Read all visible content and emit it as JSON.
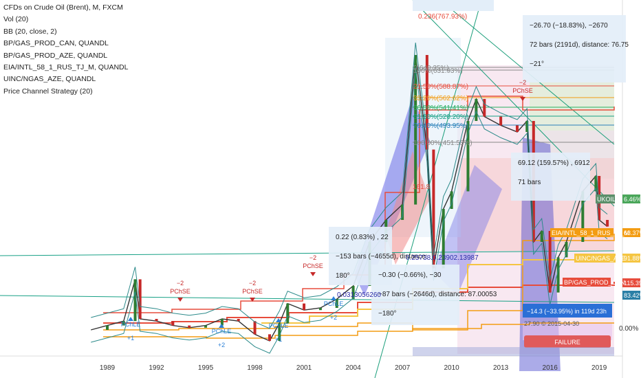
{
  "legend": {
    "title": "CFDs on Crude Oil (Brent), M, FXCM",
    "lines": [
      "Vol (20)",
      "BB (20, close, 2)",
      "BP/GAS_PROD_CAN, QUANDL",
      "BP/GAS_PROD_AZE, QUANDL",
      "EIA/INTL_58_1_RUS_TJ_M, QUANDL",
      "UINC/NGAS_AZE, QUANDL",
      "Price Channel Strategy (20)"
    ]
  },
  "chart_data": {
    "type": "line",
    "title": "CFDs on Crude Oil (Brent), M, FXCM",
    "x_ticks": [
      "1989",
      "1992",
      "1995",
      "1998",
      "2001",
      "2004",
      "2007",
      "2010",
      "2013",
      "2016",
      "2019"
    ],
    "y_ticks": [
      "0.00%"
    ],
    "series": [
      {
        "name": "CFDs on Crude Oil (Brent)",
        "x": [
          1988,
          1989,
          1990,
          1990.7,
          1991,
          1992,
          1993,
          1994,
          1995,
          1996,
          1997,
          1998,
          1998.9,
          1999.5,
          2000,
          2001,
          2002,
          2003,
          2004,
          2005,
          2006,
          2007,
          2007.8,
          2008.5,
          2008.9,
          2009.5,
          2010,
          2011,
          2011.5,
          2012,
          2013,
          2014,
          2014.6,
          2015,
          2015.5,
          2016,
          2016.5,
          2017,
          2018,
          2018.8,
          2019,
          2019.5
        ],
        "values": [
          15,
          17,
          19,
          38,
          20,
          19,
          17,
          16,
          17,
          20,
          19,
          13,
          10,
          18,
          27,
          24,
          25,
          29,
          35,
          55,
          65,
          72,
          140,
          97,
          43,
          70,
          78,
          110,
          120,
          112,
          108,
          105,
          110,
          55,
          60,
          32,
          48,
          55,
          78,
          85,
          65,
          62
        ]
      }
    ],
    "annotations": {
      "fib_top": "0.236(767.93%)",
      "fib_levels": [
        "0(640.35%)",
        "100%(631.93%)",
        "21.50%(588.87%)",
        "33.20%(562.62%)",
        "50.00%(541.41%)",
        "61.80%(520.20%)",
        "76.40%(493.95%)",
        "100.00%(451.53%)"
      ],
      "fib_mid": "161.8",
      "measure_1": {
        "range": "−26.70 (−18.83%), −2670",
        "bars": "72 bars (2191d), distance: 76.75",
        "angle": "−21°"
      },
      "measure_2": {
        "range": "69.12 (159.57%) , 6912",
        "bars": "71 bars"
      },
      "measure_3": {
        "range": "0.22 (0.83%) , 22",
        "bars": "−153 bars (−4655d), distance:",
        "angle": "180°"
      },
      "measure_4": {
        "range": "−0.30 (−0.66%), −30",
        "bars": "−87 bars (−2646d), distance: 87.00053",
        "angle": "−180°"
      },
      "overlap_1": "0.25738.0.23902.13987",
      "overlap_2": "0.0313056260",
      "trade_label": "−14.3 (−33.95%) in 119d 23h",
      "trade_sub": "27.90 © 2015-04-30",
      "failure": "FAILURE",
      "signal_short": "PChSE",
      "signal_long": "PChLE",
      "signal_plus": "+1",
      "signal_plus2": "+2",
      "signal_minus": "−2",
      "pct_labels": [
        {
          "text": "UKOIL",
          "color": "#5b8f6a"
        },
        {
          "text": "6.46%",
          "color": "#4aa65a"
        },
        {
          "text": "63.37%",
          "color": "#f39c12"
        },
        {
          "text": "91.88%",
          "color": "#f5c542"
        },
        {
          "text": "115.39%",
          "color": "#e74c3c"
        },
        {
          "text": "83.42%",
          "color": "#2a7fa6"
        },
        {
          "text": "BP/GAS_PROD_CAN",
          "color": "#e74c3c"
        },
        {
          "text": "EIA/INTL_58_1_RUS_TJ_M",
          "color": "#f39c12"
        },
        {
          "text": "UINC/NGAS_AZE",
          "color": "#f5c542"
        }
      ]
    }
  },
  "colors": {
    "candle_up": "#2e7d32",
    "candle_down": "#c62828",
    "bb": "#2b8a8a",
    "gas_can": "#e74c3c",
    "gas_aze": "#f39c12",
    "ngas_aze": "#f5c542",
    "rus": "#8e44ad"
  }
}
